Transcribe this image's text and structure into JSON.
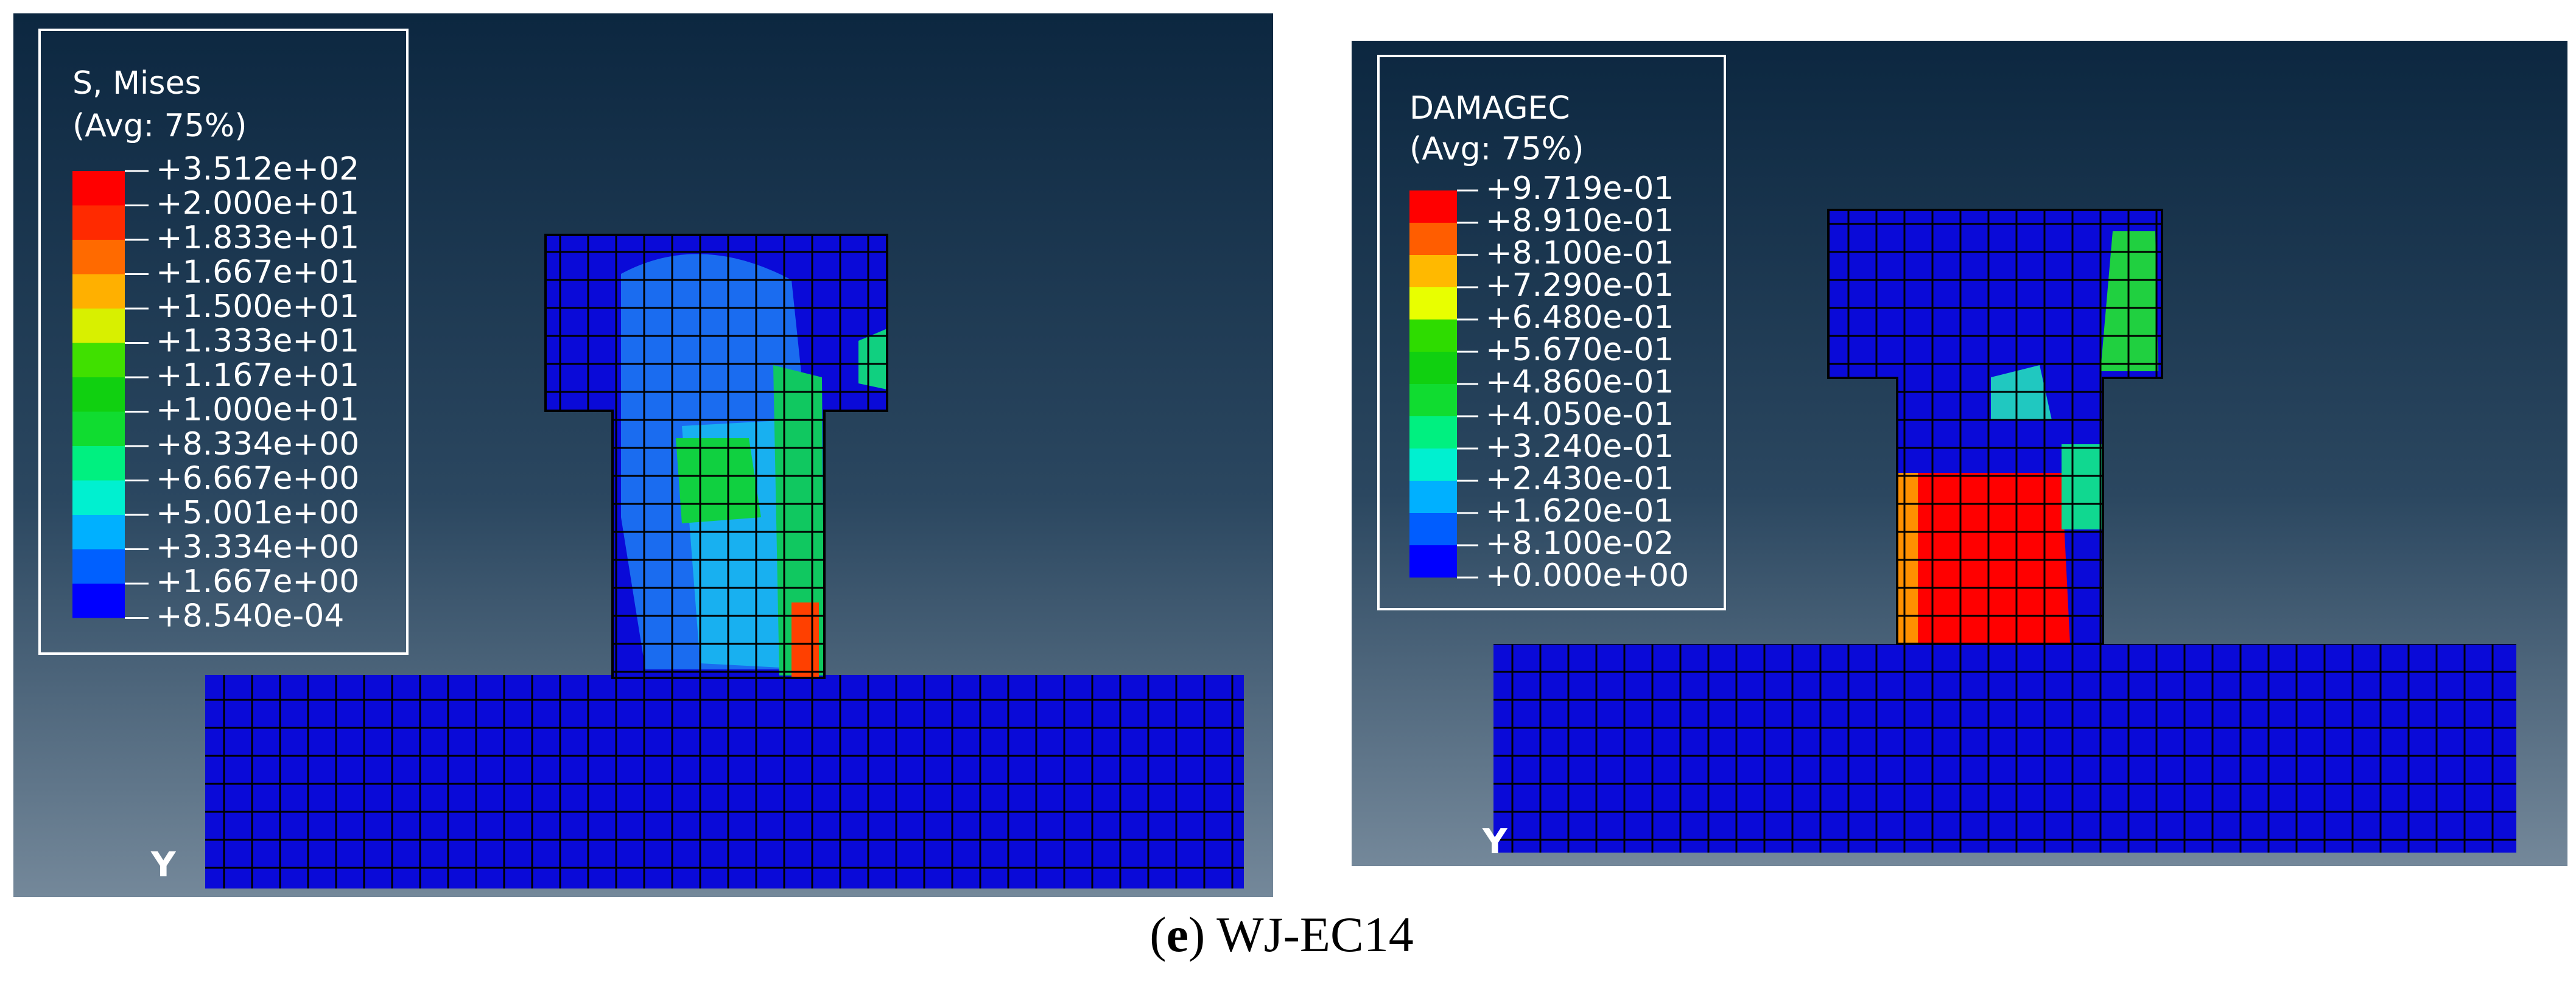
{
  "panels": [
    {
      "legend": {
        "title": "S, Mises",
        "subtitle": "(Avg: 75%)",
        "labels": [
          "+3.512e+02",
          "+2.000e+01",
          "+1.833e+01",
          "+1.667e+01",
          "+1.500e+01",
          "+1.333e+01",
          "+1.167e+01",
          "+1.000e+01",
          "+8.334e+00",
          "+6.667e+00",
          "+5.001e+00",
          "+3.334e+00",
          "+1.667e+00",
          "+8.540e-04"
        ],
        "colors": [
          "#ff0000",
          "#ff2a00",
          "#ff6a00",
          "#ffb000",
          "#d8f000",
          "#40e000",
          "#10d010",
          "#10dc30",
          "#00f080",
          "#00f0d0",
          "#00b0ff",
          "#0060ff",
          "#0000ff"
        ]
      },
      "axis_label": "Y"
    },
    {
      "legend": {
        "title": "DAMAGEC",
        "subtitle": "(Avg: 75%)",
        "labels": [
          "+9.719e-01",
          "+8.910e-01",
          "+8.100e-01",
          "+7.290e-01",
          "+6.480e-01",
          "+5.670e-01",
          "+4.860e-01",
          "+4.050e-01",
          "+3.240e-01",
          "+2.430e-01",
          "+1.620e-01",
          "+8.100e-02",
          "+0.000e+00"
        ],
        "colors": [
          "#ff0000",
          "#ff5d00",
          "#ffb900",
          "#e8ff00",
          "#2edc00",
          "#10d010",
          "#10dc30",
          "#00f080",
          "#00f0d0",
          "#00b0ff",
          "#005dff",
          "#0000ff"
        ]
      },
      "axis_label": "Y"
    }
  ],
  "caption": {
    "prefix": "(",
    "letter": "e",
    "suffix": ") WJ-EC14"
  }
}
